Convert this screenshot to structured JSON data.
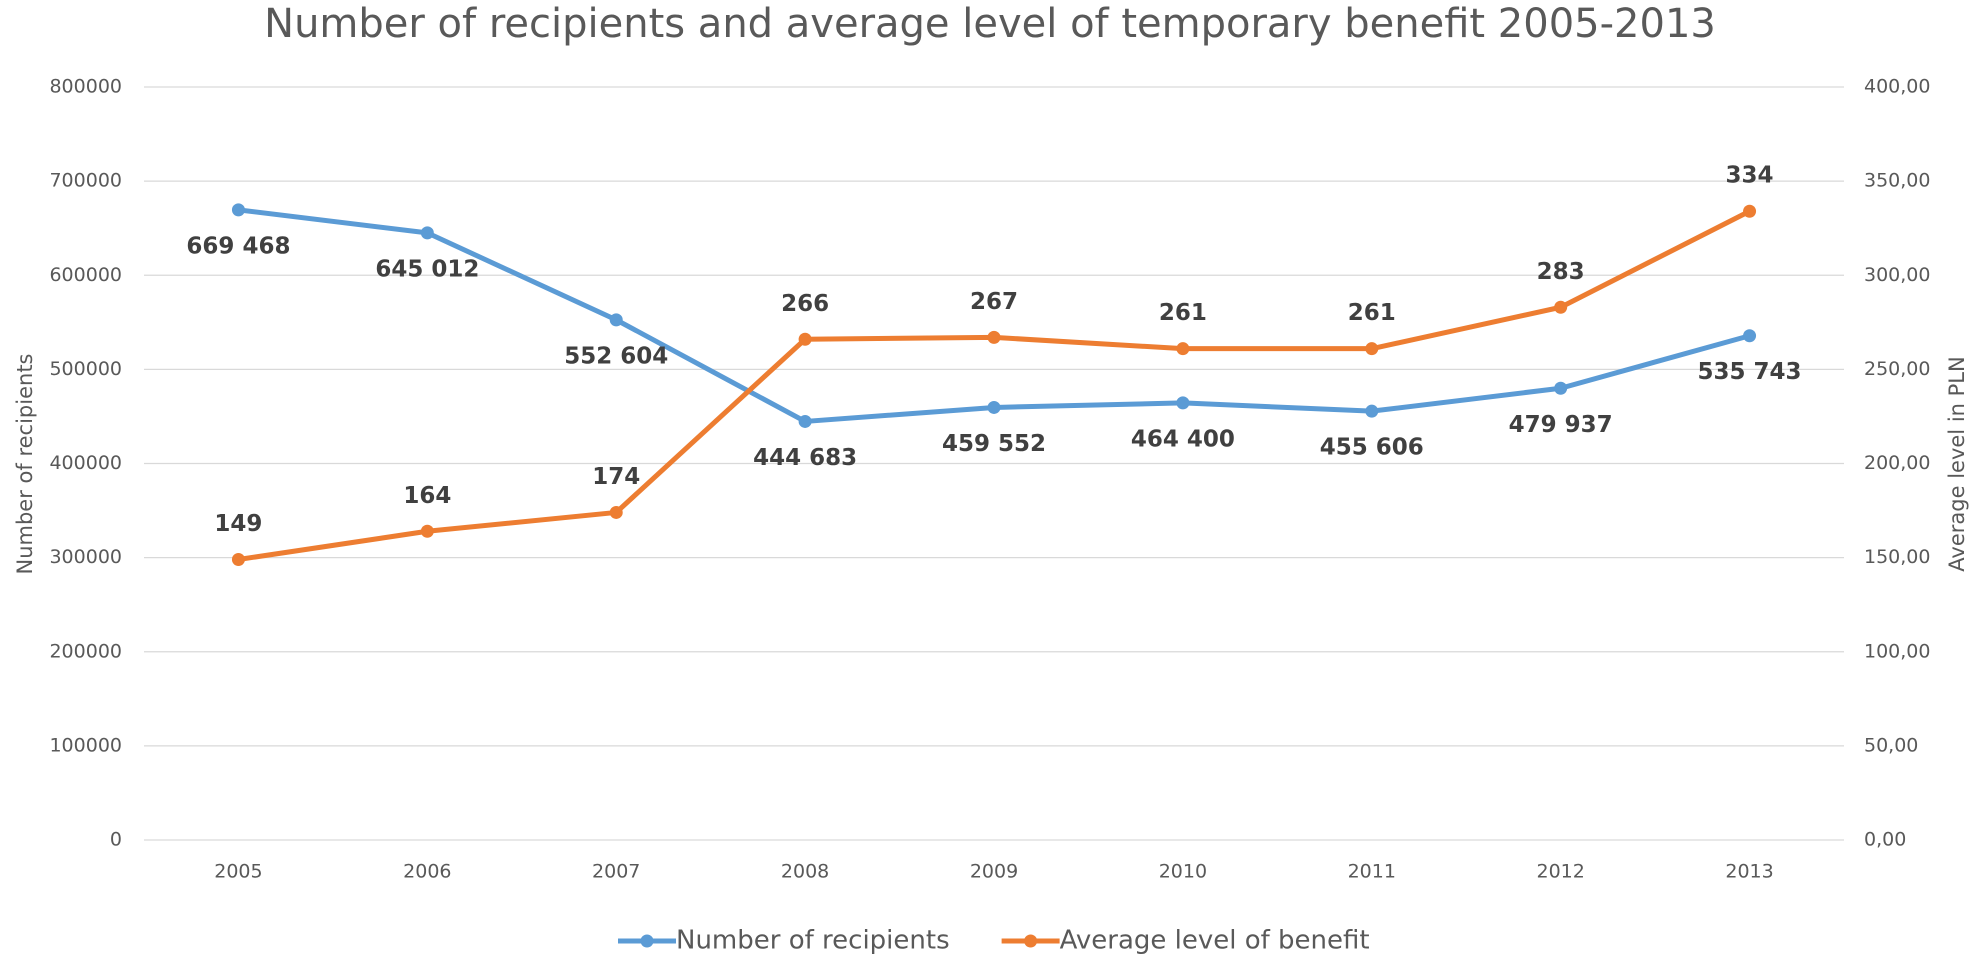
{
  "chart_data": {
    "type": "line",
    "title": "Number of recipients and average level of temporary benefit 2005-2013",
    "y_label": "Number of recipients",
    "y2_label": "Average level in PLN",
    "categories": [
      "2005",
      "2006",
      "2007",
      "2008",
      "2009",
      "2010",
      "2011",
      "2012",
      "2013"
    ],
    "series": [
      {
        "name": "Number of recipients",
        "color": "#5b9bd5",
        "values": [
          669468,
          645012,
          552604,
          444683,
          459552,
          464400,
          455606,
          479937,
          535743
        ],
        "value_labels": [
          "669 468",
          "645 012",
          "552 604",
          "444 683",
          "459 552",
          "464 400",
          "455 606",
          "479 937",
          "535 743"
        ]
      },
      {
        "name": "Average level of benefit",
        "color": "#ed7d31",
        "axis": "y2",
        "values": [
          149,
          164,
          174,
          266,
          267,
          261,
          261,
          283,
          334
        ]
      }
    ],
    "ylim": [
      0,
      800000
    ],
    "yticks": [
      0,
      100000,
      200000,
      300000,
      400000,
      500000,
      600000,
      700000,
      800000
    ],
    "y2lim": [
      0,
      400
    ],
    "y2ticks": [
      {
        "value": 0,
        "label": "0,00"
      },
      {
        "value": 50,
        "label": "50,00"
      },
      {
        "value": 100,
        "label": "100,00"
      },
      {
        "value": 150,
        "label": "150,00"
      },
      {
        "value": 200,
        "label": "200,00"
      },
      {
        "value": 250,
        "label": "250,00"
      },
      {
        "value": 300,
        "label": "300,00"
      },
      {
        "value": 350,
        "label": "350,00"
      },
      {
        "value": 400,
        "label": "400,00"
      }
    ],
    "grid": true,
    "legend": "bottom"
  }
}
